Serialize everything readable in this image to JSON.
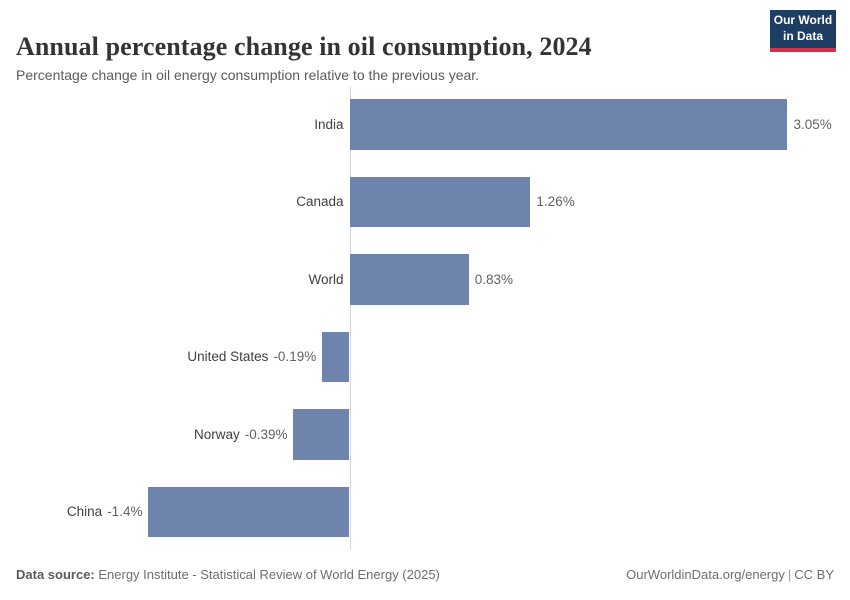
{
  "header": {
    "title": "Annual percentage change in oil consumption, 2024",
    "subtitle": "Percentage change in oil energy consumption relative to the previous year.",
    "logo": {
      "line1": "Our World",
      "line2": "in Data",
      "bg": "#1d3d63",
      "accent": "#d33147"
    }
  },
  "chart_data": {
    "type": "bar",
    "orientation": "horizontal",
    "title": "Annual percentage change in oil consumption, 2024",
    "categories": [
      "India",
      "Canada",
      "World",
      "United States",
      "Norway",
      "China"
    ],
    "values": [
      3.05,
      1.26,
      0.83,
      -0.19,
      -0.39,
      -1.4
    ],
    "value_labels": [
      "3.05%",
      "1.26%",
      "0.83%",
      "-0.19%",
      "-0.39%",
      "-1.4%"
    ],
    "unit": "%",
    "xlim": [
      -1.4,
      3.05
    ],
    "bar_color": "#6e84ac",
    "axis_color": "#d5d5d5",
    "grid": false,
    "legend": "none"
  },
  "footer": {
    "datasource_label": "Data source:",
    "datasource_value": " Energy Institute - Statistical Review of World Energy (2025)",
    "right_url": "OurWorldinData.org/energy",
    "right_sep": "|",
    "right_license": "CC BY"
  }
}
